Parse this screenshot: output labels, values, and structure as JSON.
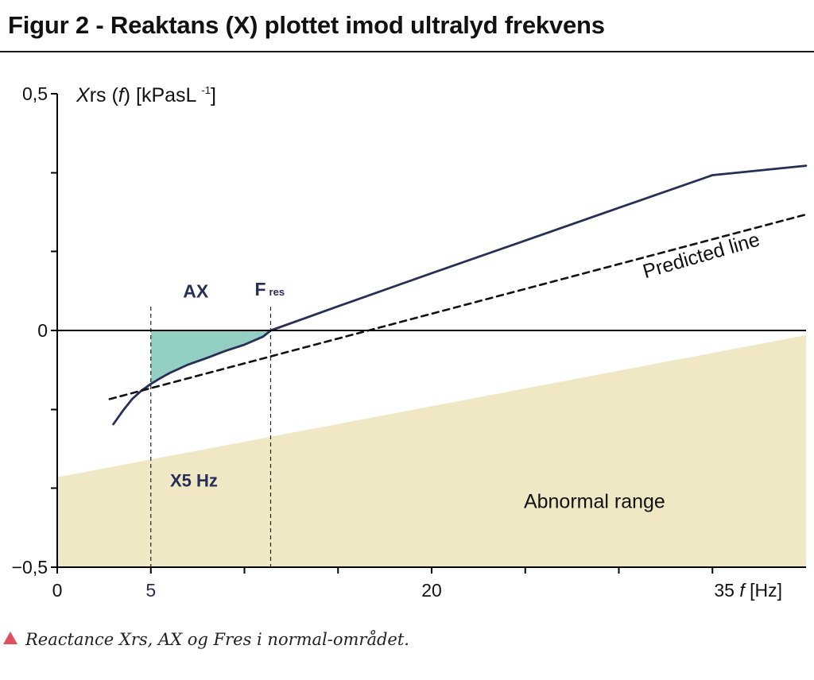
{
  "figure": {
    "title": "Figur 2 - Reaktans (X) plottet imod ultralyd frekvens",
    "caption": "Reactance Xrs, AX og Fres i normal-området."
  },
  "colors": {
    "measured": "#272f57",
    "abnormal_fill": "#f0e8c5",
    "ax_fill": "#93cfc3",
    "axis": "#000000"
  },
  "chart_data": {
    "type": "line",
    "title": "Figur 2 - Reaktans (X) plottet imod ultralyd frekvens",
    "ylabel": {
      "pre": "X",
      "mid": "rs (",
      "var": "f",
      "post": ") [kPasL ",
      "sup": "-1",
      "end": "]"
    },
    "xlabel": {
      "pre": "35 ",
      "var": "f",
      "post": " [Hz]"
    },
    "xlim": [
      0,
      40
    ],
    "ylim": [
      -0.5,
      0.5
    ],
    "xticks": [
      0,
      5,
      10,
      15,
      20,
      25,
      30,
      35
    ],
    "xtick_labels": [
      {
        "value": 0,
        "label": "0"
      },
      {
        "value": 5,
        "label": "5"
      },
      {
        "value": 20,
        "label": "20"
      }
    ],
    "yticks": [
      -0.5,
      -0.333,
      -0.167,
      0,
      0.167,
      0.333,
      0.5
    ],
    "ytick_labels": [
      {
        "value": 0.5,
        "label": "0,5"
      },
      {
        "value": 0,
        "label": "0"
      },
      {
        "value": -0.5,
        "label": "−0,5"
      }
    ],
    "series": [
      {
        "style": "solid",
        "x": [
          3.0,
          3.5,
          4.0,
          4.5,
          5.0,
          5.5,
          6.0,
          7.0,
          8.0,
          9.0,
          10.0,
          11.0,
          11.4,
          15.0,
          20.0,
          25.0,
          30.0,
          35.0,
          40.0
        ],
        "y": [
          -0.198,
          -0.17,
          -0.145,
          -0.127,
          -0.113,
          -0.101,
          -0.09,
          -0.072,
          -0.058,
          -0.043,
          -0.03,
          -0.013,
          0.0,
          0.051,
          0.121,
          0.19,
          0.259,
          0.328,
          0.348
        ]
      },
      {
        "name": "Predicted line",
        "style": "dashed",
        "x": [
          2.8,
          40.0
        ],
        "y": [
          -0.145,
          0.245
        ]
      }
    ],
    "regions": [
      {
        "name": "Abnormal range",
        "type": "below-line",
        "x": [
          0,
          40
        ],
        "y": [
          -0.31,
          -0.01
        ]
      },
      {
        "name": "AX",
        "type": "area-between-curve-and-zero",
        "x_from": 5.0,
        "x_to": 11.4
      }
    ],
    "reference_lines": [
      {
        "x": 5.0,
        "label": "X5 Hz",
        "style": "dashed"
      },
      {
        "x": 11.4,
        "label": "F",
        "sub": "res",
        "style": "dashed"
      }
    ],
    "annotations": [
      {
        "text": "Predicted line",
        "x": 34.5,
        "y": 0.145
      },
      {
        "text": "Abnormal range",
        "x": 28.7,
        "y": -0.375
      },
      {
        "text": "AX",
        "x": 7.4,
        "y": 0.07
      },
      {
        "text": "X5 Hz",
        "x": 7.3,
        "y": -0.33
      }
    ]
  }
}
